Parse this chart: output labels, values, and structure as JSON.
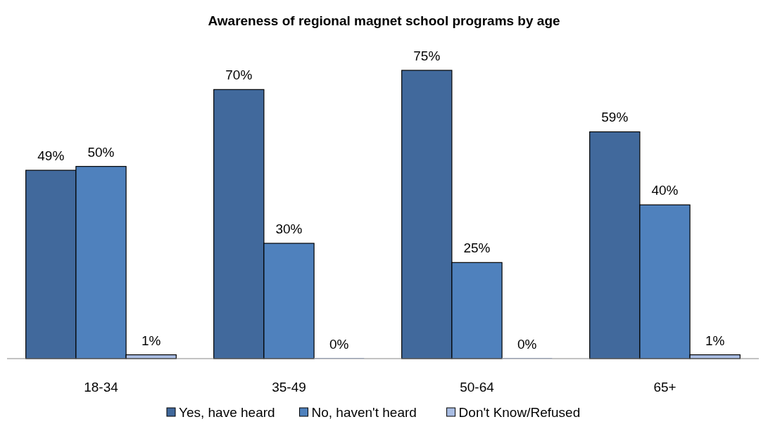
{
  "chart_data": {
    "type": "bar",
    "title": "Awareness of regional magnet school programs by age",
    "categories": [
      "18-34",
      "35-49",
      "50-64",
      "65+"
    ],
    "series": [
      {
        "name": "Yes, have heard",
        "color": "#41699c",
        "values": [
          49,
          70,
          75,
          59
        ],
        "value_labels": [
          "49%",
          "70%",
          "75%",
          "59%"
        ]
      },
      {
        "name": "No, haven't heard",
        "color": "#4f81bd",
        "values": [
          50,
          30,
          25,
          40
        ],
        "value_labels": [
          "50%",
          "30%",
          "25%",
          "40%"
        ]
      },
      {
        "name": "Don't Know/Refused",
        "color": "#a9bde3",
        "values": [
          1,
          0,
          0,
          1
        ],
        "value_labels": [
          "1%",
          "0%",
          "0%",
          "1%"
        ]
      }
    ],
    "legend": "bottom"
  }
}
